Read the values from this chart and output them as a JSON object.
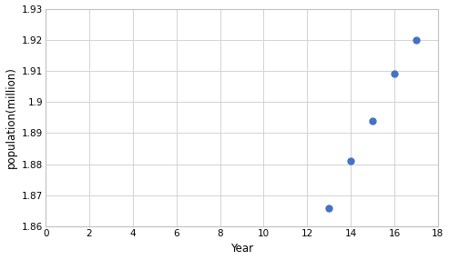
{
  "x": [
    13,
    14,
    15,
    16,
    17
  ],
  "y": [
    1.866,
    1.881,
    1.894,
    1.909,
    1.92
  ],
  "xlabel": "Year",
  "ylabel": "population(million)",
  "xlim": [
    0,
    18
  ],
  "ylim": [
    1.86,
    1.93
  ],
  "xticks": [
    0,
    2,
    4,
    6,
    8,
    10,
    12,
    14,
    16,
    18
  ],
  "yticks": [
    1.86,
    1.87,
    1.88,
    1.89,
    1.9,
    1.91,
    1.92,
    1.93
  ],
  "marker_color": "#4472C4",
  "marker_size": 25,
  "background_color": "#ffffff",
  "grid_color": "#d3d3d3",
  "tick_fontsize": 7.5,
  "label_fontsize": 8.5
}
